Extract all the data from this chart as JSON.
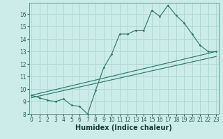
{
  "xlabel": "Humidex (Indice chaleur)",
  "bg_color": "#ccecea",
  "grid_color": "#afd8d4",
  "line_color": "#2d7a6e",
  "line1_x": [
    0,
    1,
    2,
    3,
    4,
    5,
    6,
    7,
    8,
    9,
    10,
    11,
    12,
    13,
    14,
    15,
    16,
    17,
    18,
    19,
    20,
    21,
    22,
    23
  ],
  "line1_y": [
    9.5,
    9.3,
    9.1,
    9.0,
    9.2,
    8.7,
    8.6,
    8.0,
    9.9,
    11.7,
    12.8,
    14.4,
    14.4,
    14.7,
    14.7,
    16.3,
    15.8,
    16.7,
    15.9,
    15.3,
    14.4,
    13.5,
    13.0,
    13.0
  ],
  "line2_x": [
    0,
    23
  ],
  "line2_y": [
    9.5,
    13.0
  ],
  "line3_x": [
    0,
    23
  ],
  "line3_y": [
    9.3,
    12.6
  ],
  "xlim": [
    -0.3,
    23.3
  ],
  "ylim": [
    8,
    16.9
  ],
  "yticks": [
    8,
    9,
    10,
    11,
    12,
    13,
    14,
    15,
    16
  ],
  "xticks": [
    0,
    1,
    2,
    3,
    4,
    5,
    6,
    7,
    8,
    9,
    10,
    11,
    12,
    13,
    14,
    15,
    16,
    17,
    18,
    19,
    20,
    21,
    22,
    23
  ],
  "xlabel_fontsize": 7,
  "tick_fontsize": 5.5
}
